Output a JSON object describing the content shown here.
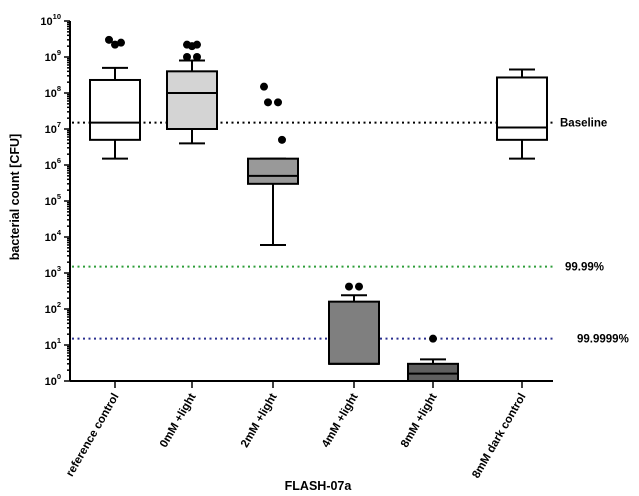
{
  "chart_data": {
    "type": "box",
    "xlabel": "FLASH-07a",
    "ylabel": "bacterial count [CFU]",
    "yscale": "log",
    "ylim": [
      1,
      10000000000
    ],
    "yticks": [
      {
        "value": 1,
        "base": "10",
        "exp": "0"
      },
      {
        "value": 10,
        "base": "10",
        "exp": "1"
      },
      {
        "value": 100,
        "base": "10",
        "exp": "2"
      },
      {
        "value": 1000,
        "base": "10",
        "exp": "3"
      },
      {
        "value": 10000,
        "base": "10",
        "exp": "4"
      },
      {
        "value": 100000,
        "base": "10",
        "exp": "5"
      },
      {
        "value": 1000000,
        "base": "10",
        "exp": "6"
      },
      {
        "value": 10000000,
        "base": "10",
        "exp": "7"
      },
      {
        "value": 100000000,
        "base": "10",
        "exp": "8"
      },
      {
        "value": 1000000000,
        "base": "10",
        "exp": "9"
      },
      {
        "value": 10000000000,
        "base": "10",
        "exp": "10"
      }
    ],
    "categories": [
      "reference control",
      "0mM +light",
      "2mM +light",
      "4mM +light",
      "8mM +light",
      "8mM dark control"
    ],
    "boxes": [
      {
        "category": "reference control",
        "whisker_low": 1500000,
        "q1": 5000000,
        "median": 15000000,
        "q3": 230000000,
        "whisker_high": 500000000,
        "outliers": [
          3000000000,
          2200000000,
          2500000000
        ],
        "fill": "#ffffff"
      },
      {
        "category": "0mM +light",
        "whisker_low": 4000000,
        "q1": 10000000,
        "median": 100000000,
        "q3": 400000000,
        "whisker_high": 800000000,
        "outliers": [
          2200000000,
          2200000000,
          2000000000,
          1000000000,
          1000000000
        ],
        "fill": "#d4d4d4"
      },
      {
        "category": "2mM +light",
        "whisker_low": 6000,
        "q1": 300000,
        "median": 500000,
        "q3": 1500000,
        "whisker_high": 1500000,
        "outliers": [
          150000000,
          55000000,
          55000000,
          5000000
        ],
        "fill": "#999999"
      },
      {
        "category": "4mM +light",
        "whisker_low": null,
        "q1": 3,
        "median": 3,
        "q3": 160,
        "whisker_high": 240,
        "outliers": [
          420,
          420
        ],
        "fill": "#7f7f7f"
      },
      {
        "category": "8mM +light",
        "whisker_low": null,
        "q1": 1,
        "median": 1.6,
        "q3": 3,
        "whisker_high": 4,
        "outliers": [
          15
        ],
        "fill": "#5f5f5f"
      },
      {
        "category": "8mM dark control",
        "whisker_low": 1500000,
        "q1": 5000000,
        "median": 11000000,
        "q3": 270000000,
        "whisker_high": 450000000,
        "outliers": [],
        "fill": "#ffffff"
      }
    ],
    "reference_lines": [
      {
        "label": "Baseline",
        "value": 15000000,
        "color": "#000000"
      },
      {
        "label": "99.99%",
        "value": 1500,
        "color": "#2e9e3a"
      },
      {
        "label": "99.9999%",
        "value": 15,
        "color": "#2a2f8f"
      }
    ]
  }
}
